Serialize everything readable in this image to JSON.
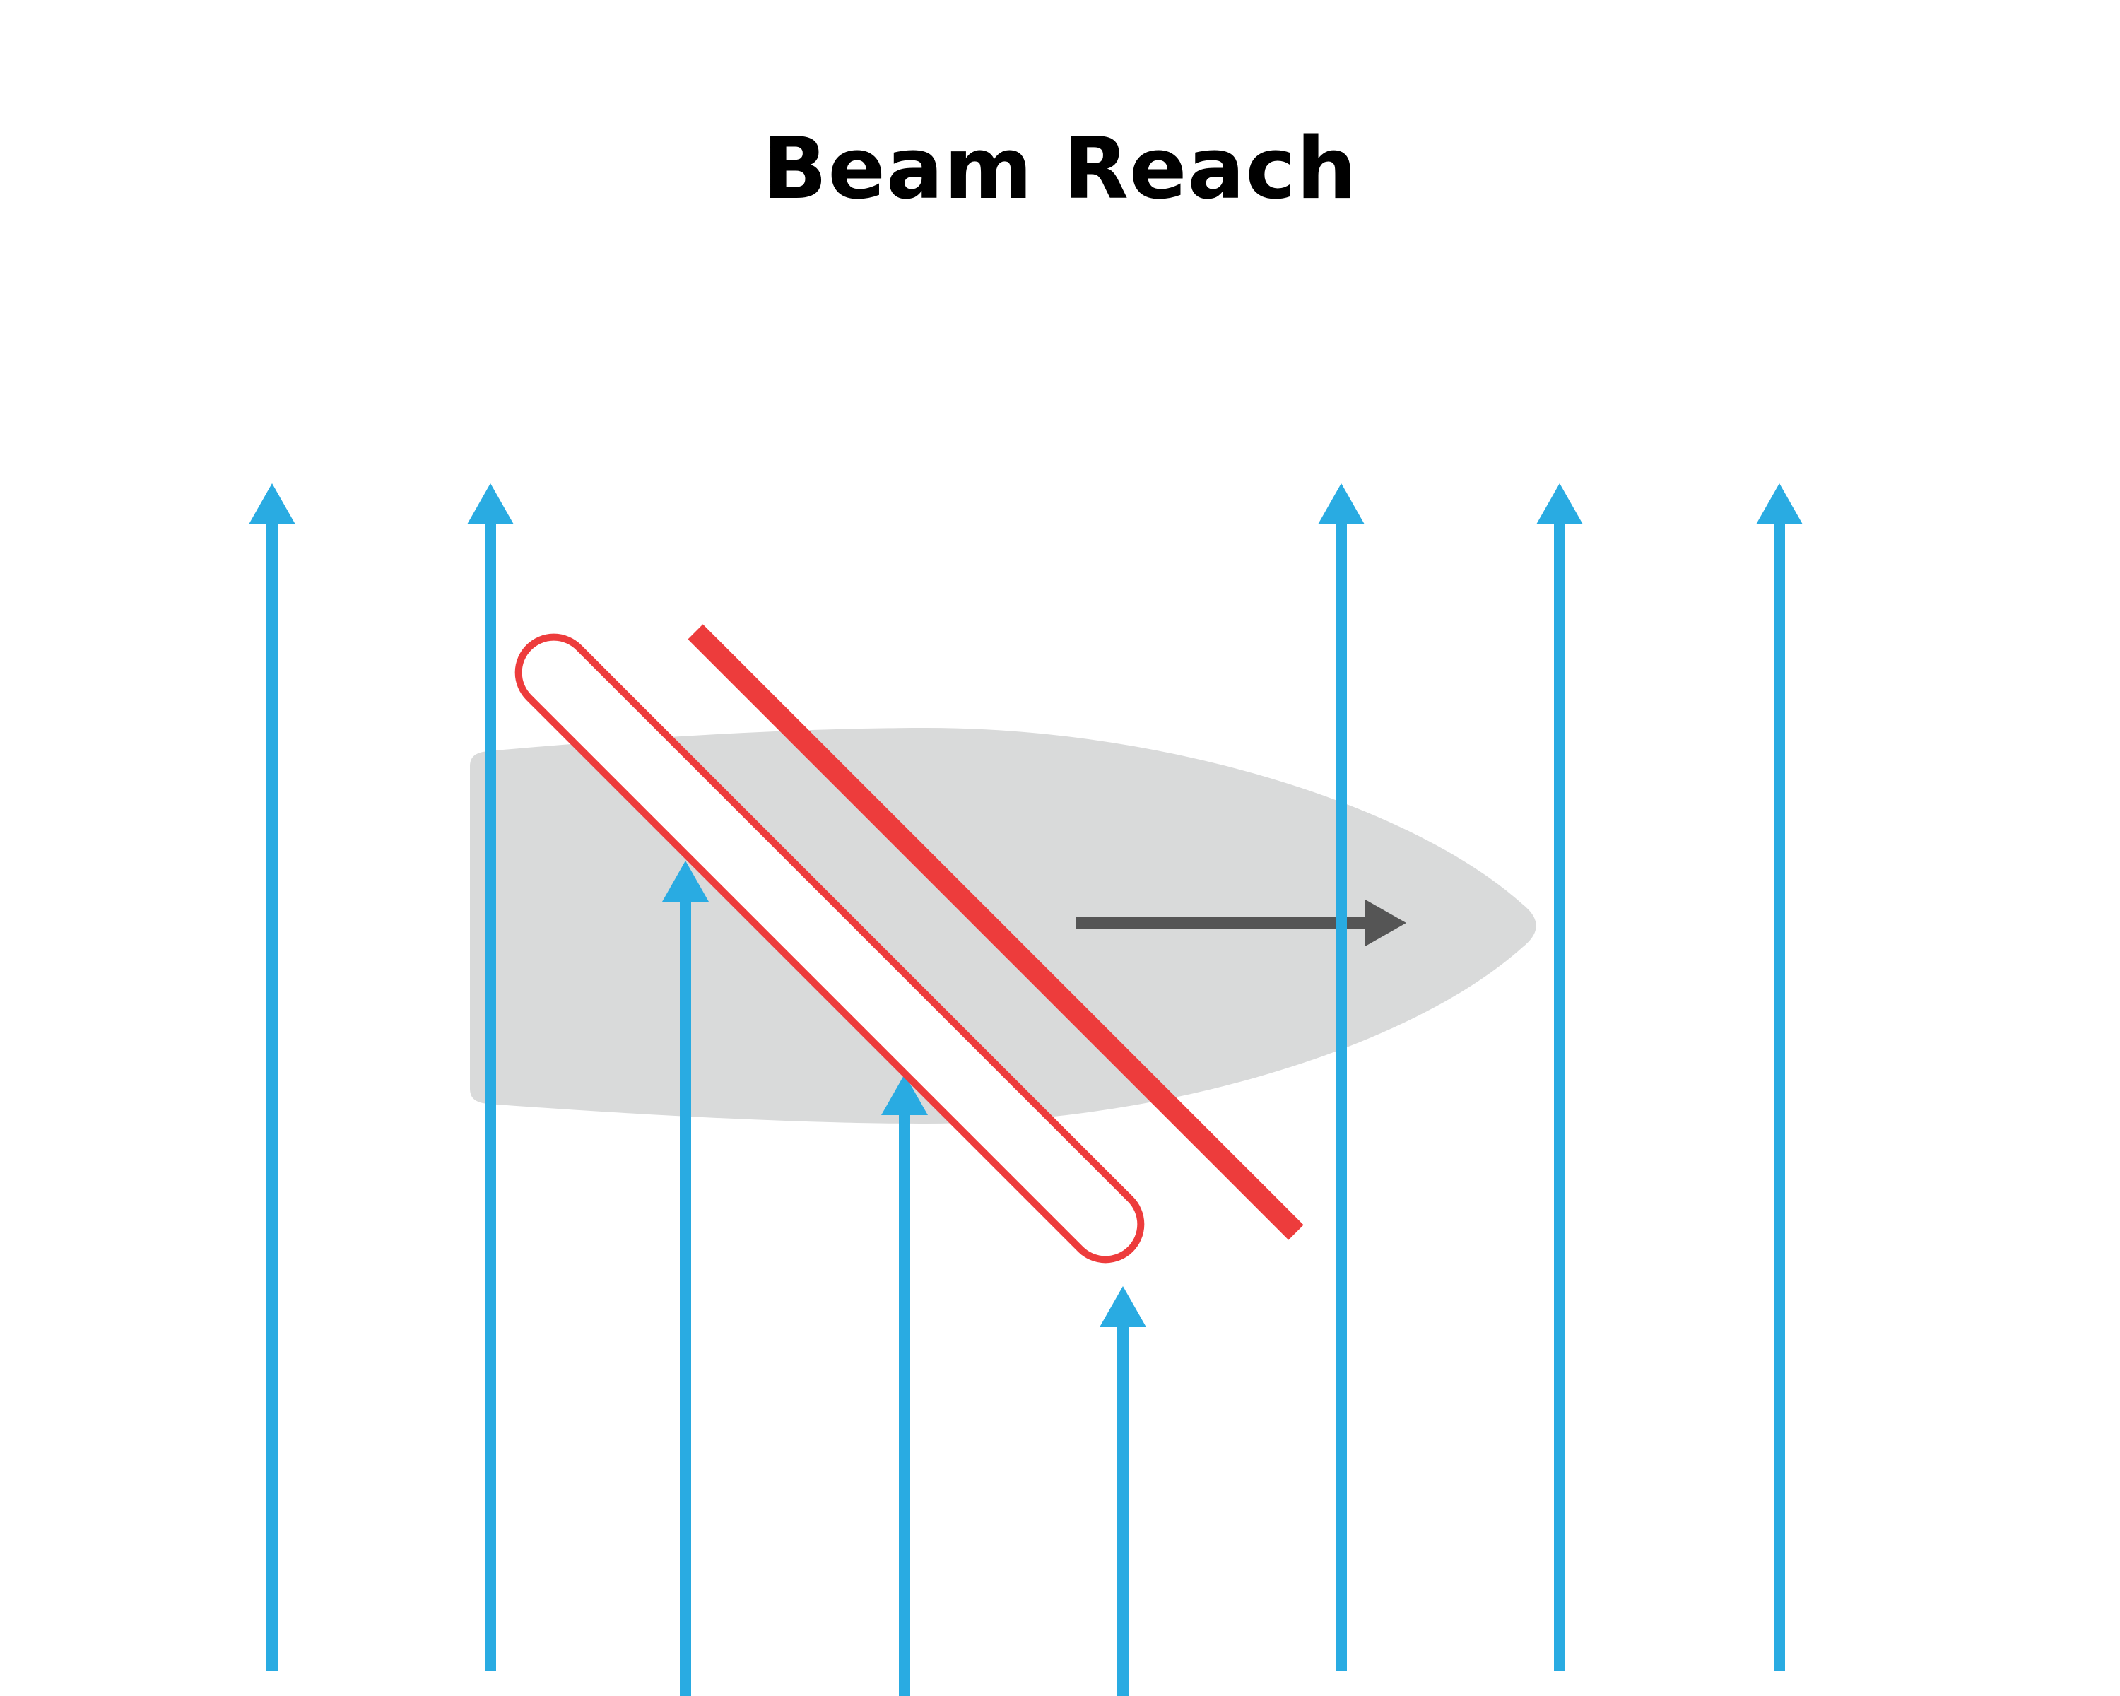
{
  "title": "Beam Reach",
  "colors": {
    "wind": "#29abe2",
    "hull": "#d9dada",
    "sail": "#ed3c3c",
    "heading": "#555555",
    "background": "#ffffff",
    "title": "#000000"
  },
  "icons": {
    "wind": "wind-arrow-icon",
    "heading": "heading-arrow-icon"
  }
}
